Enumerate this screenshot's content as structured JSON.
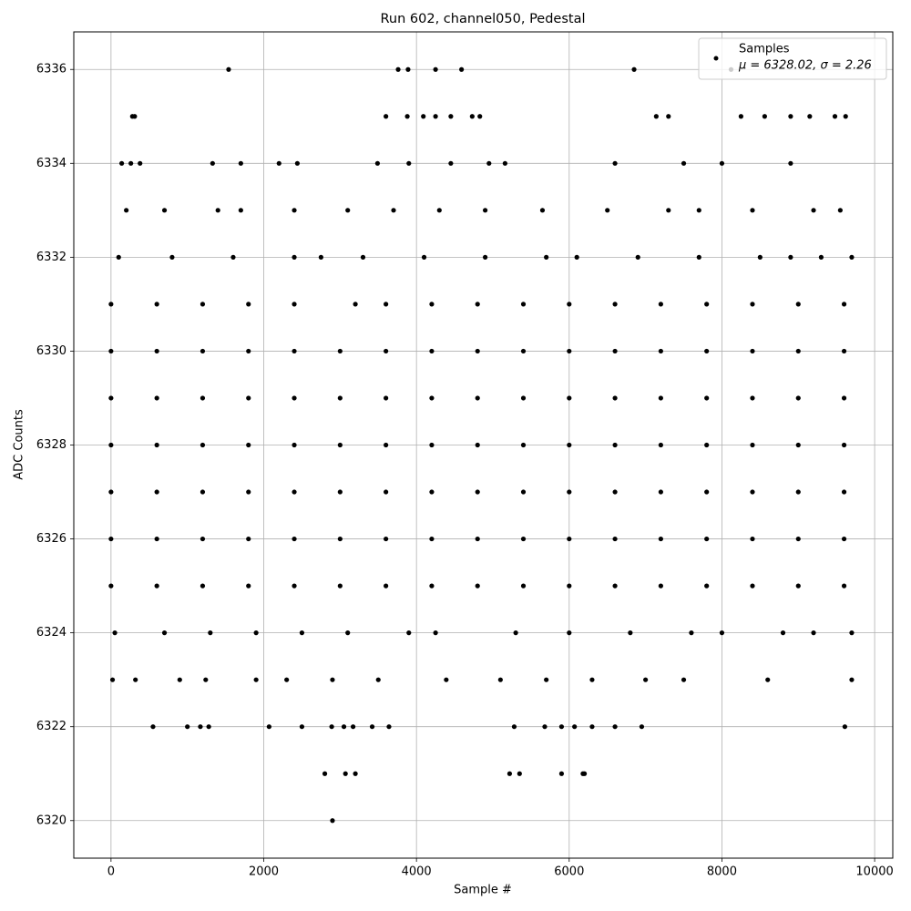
{
  "chart_data": {
    "type": "scatter",
    "title": "Run 602, channel050, Pedestal",
    "x_label": "Sample #",
    "y_label": "ADC Counts",
    "xlim": [
      -487.5,
      10237.5
    ],
    "ylim": [
      6319.2,
      6336.8
    ],
    "xticks": [
      0,
      2000,
      4000,
      6000,
      8000,
      10000
    ],
    "yticks": [
      6320,
      6322,
      6324,
      6326,
      6328,
      6330,
      6332,
      6334,
      6336
    ],
    "grid": true,
    "legend": "upper right",
    "annotation": "μ = 6328.02, σ = 2.26",
    "x": [
      2900,
      2800,
      3070,
      3200,
      5220,
      5350,
      5900,
      6180,
      6200,
      1540,
      3760,
      3890,
      4250,
      4590,
      6850,
      8120,
      280,
      310,
      3600,
      3880,
      4090,
      4250,
      4450,
      4730,
      4830,
      7140,
      7300,
      8250,
      8560,
      8900,
      9150,
      9480,
      9620,
      550,
      1000,
      1170,
      1280,
      2070,
      2500,
      2890,
      3050,
      3170,
      3420,
      3640,
      5280,
      5680,
      5900,
      6070,
      6300,
      6600,
      6950,
      9610,
      140,
      260,
      380,
      1330,
      1700,
      2200,
      2440,
      3490,
      3900,
      4450,
      4950,
      5160,
      6600,
      7500,
      8000,
      8900,
      20,
      320,
      900,
      1240,
      1900,
      2300,
      2900,
      3500,
      4390,
      5100,
      5700,
      6300,
      7000,
      7500,
      8600,
      9700,
      200,
      700,
      1400,
      1700,
      2400,
      3100,
      3700,
      4300,
      4900,
      5650,
      6500,
      7300,
      7700,
      8400,
      9200,
      9550,
      50,
      700,
      1300,
      1900,
      2500,
      3100,
      3900,
      4250,
      5300,
      6000,
      6800,
      7600,
      8000,
      8800,
      9200,
      9700,
      100,
      800,
      1600,
      2400,
      2750,
      3300,
      4100,
      4900,
      5700,
      6100,
      6900,
      7700,
      8500,
      8900,
      9300,
      9700,
      0,
      600,
      1200,
      1800,
      2400,
      3000,
      3600,
      4200,
      4800,
      5400,
      6000,
      6600,
      7200,
      7800,
      8400,
      9000,
      9600,
      0,
      600,
      1200,
      1800,
      2400,
      3000,
      3600,
      4200,
      4800,
      5400,
      6000,
      6600,
      7200,
      7800,
      8400,
      9000,
      9600,
      0,
      600,
      1200,
      1800,
      2400,
      3000,
      3600,
      4200,
      4800,
      5400,
      6000,
      6600,
      7200,
      7800,
      8400,
      9000,
      9600,
      0,
      600,
      1200,
      1800,
      2400,
      3000,
      3600,
      4200,
      4800,
      5400,
      6000,
      6600,
      7200,
      7800,
      8400,
      9000,
      9600,
      0,
      600,
      1200,
      1800,
      2400,
      3000,
      3600,
      4200,
      4800,
      5400,
      6000,
      6600,
      7200,
      7800,
      8400,
      9000,
      9600,
      0,
      600,
      1200,
      1800,
      2400,
      3000,
      3600,
      4200,
      4800,
      5400,
      6000,
      6600,
      7200,
      7800,
      8400,
      9000,
      9600,
      0,
      600,
      1200,
      1800,
      2400,
      3200,
      3600,
      4200,
      4800,
      5400,
      6000,
      6600,
      7200,
      7800,
      8400,
      9000,
      9600
    ],
    "series": [
      {
        "name": "Samples",
        "color": "#000000",
        "values": [
          6320,
          6321,
          6321,
          6321,
          6321,
          6321,
          6321,
          6321,
          6321,
          6336,
          6336,
          6336,
          6336,
          6336,
          6336,
          6336,
          6335,
          6335,
          6335,
          6335,
          6335,
          6335,
          6335,
          6335,
          6335,
          6335,
          6335,
          6335,
          6335,
          6335,
          6335,
          6335,
          6335,
          6322,
          6322,
          6322,
          6322,
          6322,
          6322,
          6322,
          6322,
          6322,
          6322,
          6322,
          6322,
          6322,
          6322,
          6322,
          6322,
          6322,
          6322,
          6322,
          6334,
          6334,
          6334,
          6334,
          6334,
          6334,
          6334,
          6334,
          6334,
          6334,
          6334,
          6334,
          6334,
          6334,
          6334,
          6334,
          6323,
          6323,
          6323,
          6323,
          6323,
          6323,
          6323,
          6323,
          6323,
          6323,
          6323,
          6323,
          6323,
          6323,
          6323,
          6323,
          6333,
          6333,
          6333,
          6333,
          6333,
          6333,
          6333,
          6333,
          6333,
          6333,
          6333,
          6333,
          6333,
          6333,
          6333,
          6333,
          6324,
          6324,
          6324,
          6324,
          6324,
          6324,
          6324,
          6324,
          6324,
          6324,
          6324,
          6324,
          6324,
          6324,
          6324,
          6324,
          6332,
          6332,
          6332,
          6332,
          6332,
          6332,
          6332,
          6332,
          6332,
          6332,
          6332,
          6332,
          6332,
          6332,
          6332,
          6332,
          6325,
          6325,
          6325,
          6325,
          6325,
          6325,
          6325,
          6325,
          6325,
          6325,
          6325,
          6325,
          6325,
          6325,
          6325,
          6325,
          6325,
          6326,
          6326,
          6326,
          6326,
          6326,
          6326,
          6326,
          6326,
          6326,
          6326,
          6326,
          6326,
          6326,
          6326,
          6326,
          6326,
          6326,
          6327,
          6327,
          6327,
          6327,
          6327,
          6327,
          6327,
          6327,
          6327,
          6327,
          6327,
          6327,
          6327,
          6327,
          6327,
          6327,
          6327,
          6328,
          6328,
          6328,
          6328,
          6328,
          6328,
          6328,
          6328,
          6328,
          6328,
          6328,
          6328,
          6328,
          6328,
          6328,
          6328,
          6328,
          6329,
          6329,
          6329,
          6329,
          6329,
          6329,
          6329,
          6329,
          6329,
          6329,
          6329,
          6329,
          6329,
          6329,
          6329,
          6329,
          6329,
          6330,
          6330,
          6330,
          6330,
          6330,
          6330,
          6330,
          6330,
          6330,
          6330,
          6330,
          6330,
          6330,
          6330,
          6330,
          6330,
          6330,
          6331,
          6331,
          6331,
          6331,
          6331,
          6331,
          6331,
          6331,
          6331,
          6331,
          6331,
          6331,
          6331,
          6331,
          6331,
          6331,
          6331
        ]
      }
    ]
  }
}
